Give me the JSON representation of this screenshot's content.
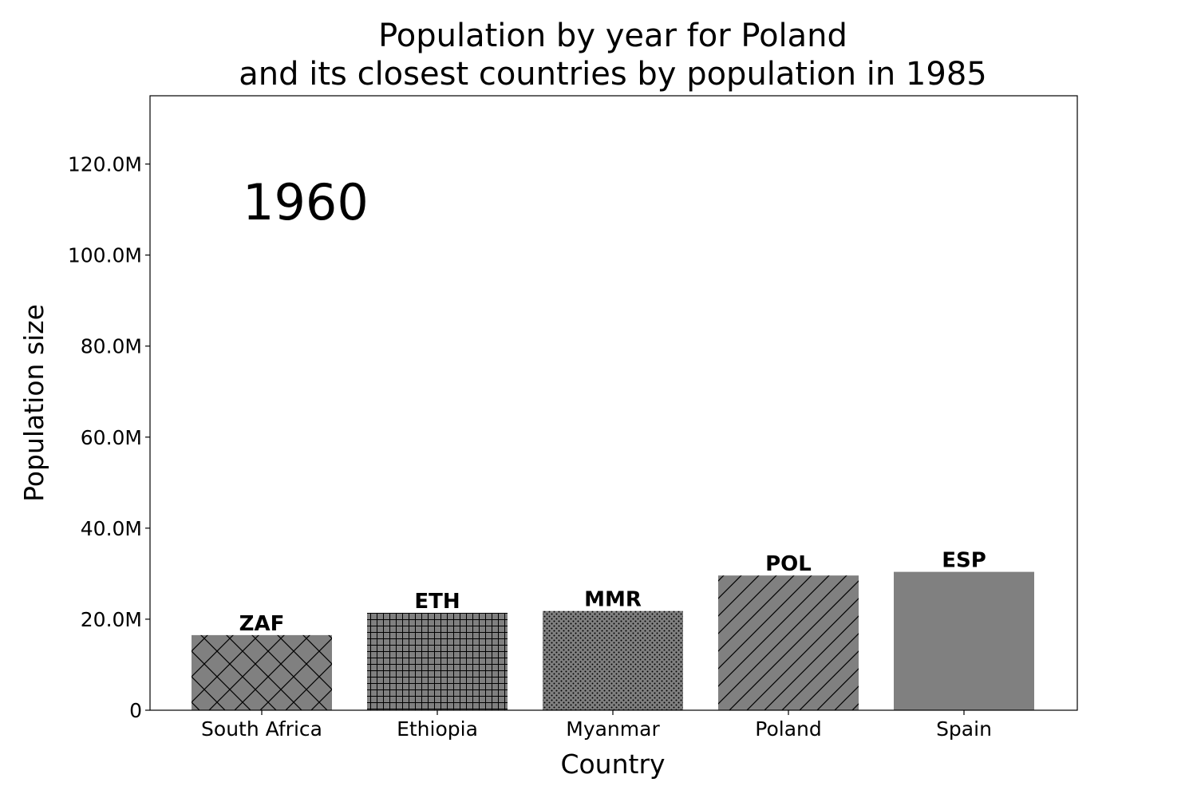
{
  "chart_data": {
    "type": "bar",
    "title_lines": [
      "Population by year for Poland",
      "and its closest countries by population in 1985"
    ],
    "xlabel": "Country",
    "ylabel": "Population size",
    "annotation": "1960",
    "categories": [
      "South Africa",
      "Ethiopia",
      "Myanmar",
      "Poland",
      "Spain"
    ],
    "bar_labels": [
      "ZAF",
      "ETH",
      "MMR",
      "POL",
      "ESP"
    ],
    "values": [
      16.5,
      21.4,
      21.8,
      29.6,
      30.4
    ],
    "value_unit": "millions",
    "patterns": [
      "crosshatch-diagonal",
      "grid",
      "dots",
      "diagonal-lines",
      "solid"
    ],
    "bar_color": "#808080",
    "ylim": [
      0,
      135
    ],
    "yticks": [
      0,
      20,
      40,
      60,
      80,
      100,
      120
    ],
    "ytick_labels": [
      "0",
      "20.0M",
      "40.0M",
      "60.0M",
      "80.0M",
      "100.0M",
      "120.0M"
    ],
    "grid": false,
    "legend": "none"
  }
}
